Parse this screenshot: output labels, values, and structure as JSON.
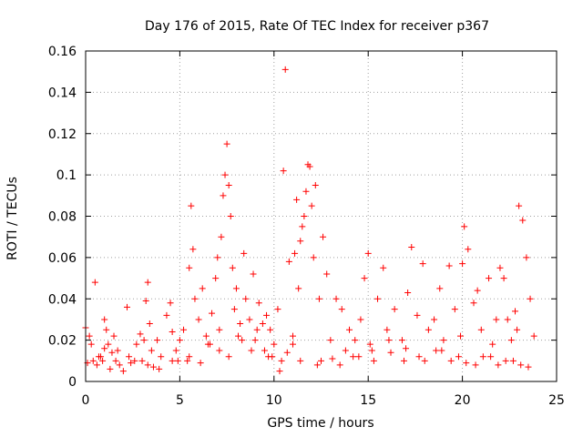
{
  "chart_data": {
    "type": "scatter",
    "title": "Day 176 of 2015, Rate Of TEC Index for receiver p367",
    "xlabel": "GPS time / hours",
    "ylabel": "ROTI / TECUs",
    "xlim": [
      0,
      25
    ],
    "ylim": [
      0,
      0.16
    ],
    "xticks": [
      0,
      5,
      10,
      15,
      20,
      25
    ],
    "yticks": [
      0,
      0.02,
      0.04,
      0.06,
      0.08,
      0.1,
      0.12,
      0.14,
      0.16
    ],
    "xtick_labels": [
      "0",
      "5",
      "10",
      "15",
      "20",
      "25"
    ],
    "ytick_labels": [
      "0",
      "0.02",
      "0.04",
      "0.06",
      "0.08",
      "0.1",
      "0.12",
      "0.14",
      "0.16"
    ],
    "grid": true,
    "marker": "plus",
    "color": "#ff0000",
    "series": [
      {
        "name": "ROTI",
        "x": [
          0.0,
          0.1,
          0.2,
          0.4,
          0.5,
          0.6,
          0.8,
          0.9,
          1.0,
          1.1,
          1.2,
          1.3,
          1.4,
          1.5,
          1.6,
          1.8,
          2.2,
          2.3,
          2.4,
          2.7,
          2.9,
          3.0,
          3.1,
          3.2,
          3.3,
          3.4,
          3.5,
          3.6,
          3.8,
          4.0,
          4.3,
          4.5,
          4.6,
          4.8,
          5.0,
          5.2,
          5.4,
          5.5,
          5.6,
          5.7,
          5.8,
          6.0,
          6.2,
          6.4,
          6.5,
          6.7,
          6.9,
          7.0,
          7.1,
          7.2,
          7.3,
          7.4,
          7.5,
          7.6,
          7.7,
          7.8,
          7.9,
          8.0,
          8.2,
          8.4,
          8.5,
          8.7,
          8.9,
          9.0,
          9.2,
          9.4,
          9.5,
          9.6,
          9.8,
          10.0,
          10.2,
          10.4,
          10.5,
          10.6,
          10.8,
          11.0,
          11.1,
          11.2,
          11.3,
          11.4,
          11.5,
          11.6,
          11.7,
          11.8,
          11.9,
          12.0,
          12.1,
          12.2,
          12.4,
          12.6,
          12.8,
          13.0,
          13.3,
          13.6,
          14.0,
          14.3,
          14.6,
          14.8,
          15.0,
          15.2,
          15.5,
          15.8,
          16.0,
          16.4,
          16.8,
          17.1,
          17.3,
          17.6,
          17.9,
          18.2,
          18.5,
          18.8,
          19.0,
          19.3,
          19.6,
          19.9,
          20.0,
          20.1,
          20.3,
          20.6,
          20.8,
          21.0,
          21.4,
          21.6,
          21.8,
          22.0,
          22.2,
          22.4,
          22.6,
          22.8,
          22.9,
          23.0,
          23.2,
          23.4,
          23.6,
          23.8,
          0.3,
          1.0,
          2.0,
          3.3,
          4.6,
          5.5,
          6.1,
          7.1,
          7.6,
          8.3,
          9.1,
          9.9,
          10.7,
          11.4,
          12.3,
          13.1,
          13.8,
          14.5,
          15.3,
          16.2,
          16.9,
          17.7,
          18.6,
          19.4,
          20.2,
          21.1,
          21.9,
          22.7,
          23.5,
          0.7,
          1.7,
          2.6,
          3.9,
          4.9,
          6.6,
          8.1,
          8.8,
          9.7,
          10.3,
          11.0,
          12.5,
          13.5,
          14.2,
          15.1,
          16.1,
          17.0,
          18.0,
          18.9,
          19.8,
          20.7,
          21.5,
          22.3,
          23.1
        ],
        "y": [
          0.026,
          0.009,
          0.022,
          0.01,
          0.048,
          0.008,
          0.012,
          0.01,
          0.03,
          0.025,
          0.018,
          0.006,
          0.014,
          0.022,
          0.01,
          0.008,
          0.036,
          0.012,
          0.009,
          0.018,
          0.023,
          0.01,
          0.02,
          0.039,
          0.048,
          0.028,
          0.015,
          0.007,
          0.02,
          0.012,
          0.032,
          0.038,
          0.024,
          0.015,
          0.02,
          0.025,
          0.01,
          0.055,
          0.085,
          0.064,
          0.04,
          0.03,
          0.045,
          0.022,
          0.018,
          0.033,
          0.05,
          0.06,
          0.025,
          0.07,
          0.09,
          0.1,
          0.115,
          0.095,
          0.08,
          0.055,
          0.035,
          0.045,
          0.028,
          0.062,
          0.04,
          0.03,
          0.052,
          0.02,
          0.038,
          0.028,
          0.015,
          0.032,
          0.025,
          0.018,
          0.035,
          0.01,
          0.102,
          0.151,
          0.058,
          0.022,
          0.062,
          0.088,
          0.045,
          0.068,
          0.075,
          0.08,
          0.092,
          0.105,
          0.104,
          0.085,
          0.06,
          0.095,
          0.04,
          0.07,
          0.052,
          0.02,
          0.04,
          0.035,
          0.025,
          0.02,
          0.03,
          0.05,
          0.062,
          0.015,
          0.04,
          0.055,
          0.025,
          0.035,
          0.02,
          0.043,
          0.065,
          0.032,
          0.057,
          0.025,
          0.03,
          0.045,
          0.02,
          0.056,
          0.035,
          0.022,
          0.057,
          0.075,
          0.064,
          0.038,
          0.044,
          0.025,
          0.05,
          0.018,
          0.03,
          0.055,
          0.05,
          0.03,
          0.02,
          0.034,
          0.025,
          0.085,
          0.078,
          0.06,
          0.04,
          0.022,
          0.018,
          0.016,
          0.005,
          0.008,
          0.01,
          0.012,
          0.009,
          0.015,
          0.012,
          0.02,
          0.025,
          0.012,
          0.014,
          0.01,
          0.008,
          0.011,
          0.015,
          0.012,
          0.01,
          0.014,
          0.01,
          0.012,
          0.015,
          0.01,
          0.009,
          0.012,
          0.008,
          0.01,
          0.007,
          0.012,
          0.015,
          0.01,
          0.006,
          0.01,
          0.018,
          0.022,
          0.015,
          0.012,
          0.005,
          0.018,
          0.01,
          0.008,
          0.012,
          0.018,
          0.02,
          0.016,
          0.01,
          0.015,
          0.012,
          0.008,
          0.012,
          0.01,
          0.008
        ]
      }
    ]
  }
}
